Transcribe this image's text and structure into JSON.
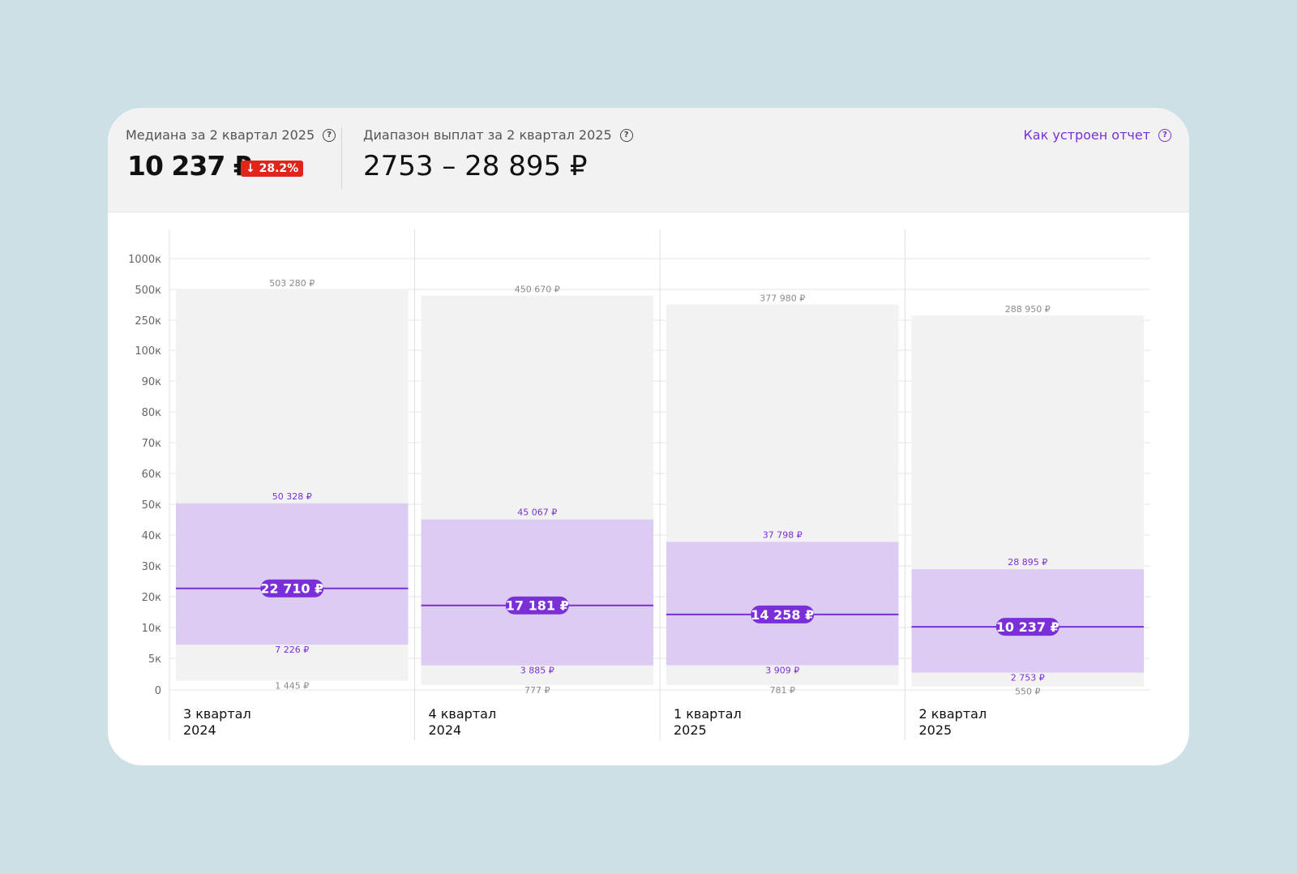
{
  "header": {
    "median_label": "Медиана за 2 квартал 2025",
    "median_value": "10 237 ₽",
    "change_badge": "↓ 28.2%",
    "range_label": "Диапазон выплат за 2 квартал 2025",
    "range_value": "2753 – 28 895 ₽",
    "report_link": "Как устроен отчет",
    "help_icon": "question-circle-icon"
  },
  "colors": {
    "background": "#cce0e6",
    "accent": "#7a2fd8",
    "median_line": "#7a2fd8",
    "band_inner": "#dccbf3",
    "band_outer": "#f2f2f2",
    "badge_red": "#e3241b"
  },
  "chart_data": {
    "type": "bar",
    "y_axis_ticks": [
      "0",
      "5к",
      "10к",
      "20к",
      "30к",
      "40к",
      "50к",
      "60к",
      "70к",
      "80к",
      "90к",
      "100к",
      "250к",
      "500к",
      "1000к"
    ],
    "y_scale": "custom-piecewise",
    "grid": true,
    "periods": [
      {
        "label_line1": "3 квартал",
        "label_line2": "2024",
        "min": 1445,
        "q1": 7226,
        "median": 22710,
        "q3": 50328,
        "max": 503280,
        "min_label": "1 445 ₽",
        "q1_label": "7 226 ₽",
        "median_label": "22 710 ₽",
        "q3_label": "50 328 ₽",
        "max_label": "503 280 ₽"
      },
      {
        "label_line1": "4 квартал",
        "label_line2": "2024",
        "min": 777,
        "q1": 3885,
        "median": 17181,
        "q3": 45067,
        "max": 450670,
        "min_label": "777 ₽",
        "q1_label": "3 885 ₽",
        "median_label": "17 181 ₽",
        "q3_label": "45 067 ₽",
        "max_label": "450 670 ₽"
      },
      {
        "label_line1": "1 квартал",
        "label_line2": "2025",
        "min": 781,
        "q1": 3909,
        "median": 14258,
        "q3": 37798,
        "max": 377980,
        "min_label": "781 ₽",
        "q1_label": "3 909 ₽",
        "median_label": "14 258 ₽",
        "q3_label": "37 798 ₽",
        "max_label": "377 980 ₽"
      },
      {
        "label_line1": "2 квартал",
        "label_line2": "2025",
        "min": 550,
        "q1": 2753,
        "median": 10237,
        "q3": 28895,
        "max": 288950,
        "min_label": "550 ₽",
        "q1_label": "2 753 ₽",
        "median_label": "10 237 ₽",
        "q3_label": "28 895 ₽",
        "max_label": "288 950 ₽"
      }
    ]
  }
}
